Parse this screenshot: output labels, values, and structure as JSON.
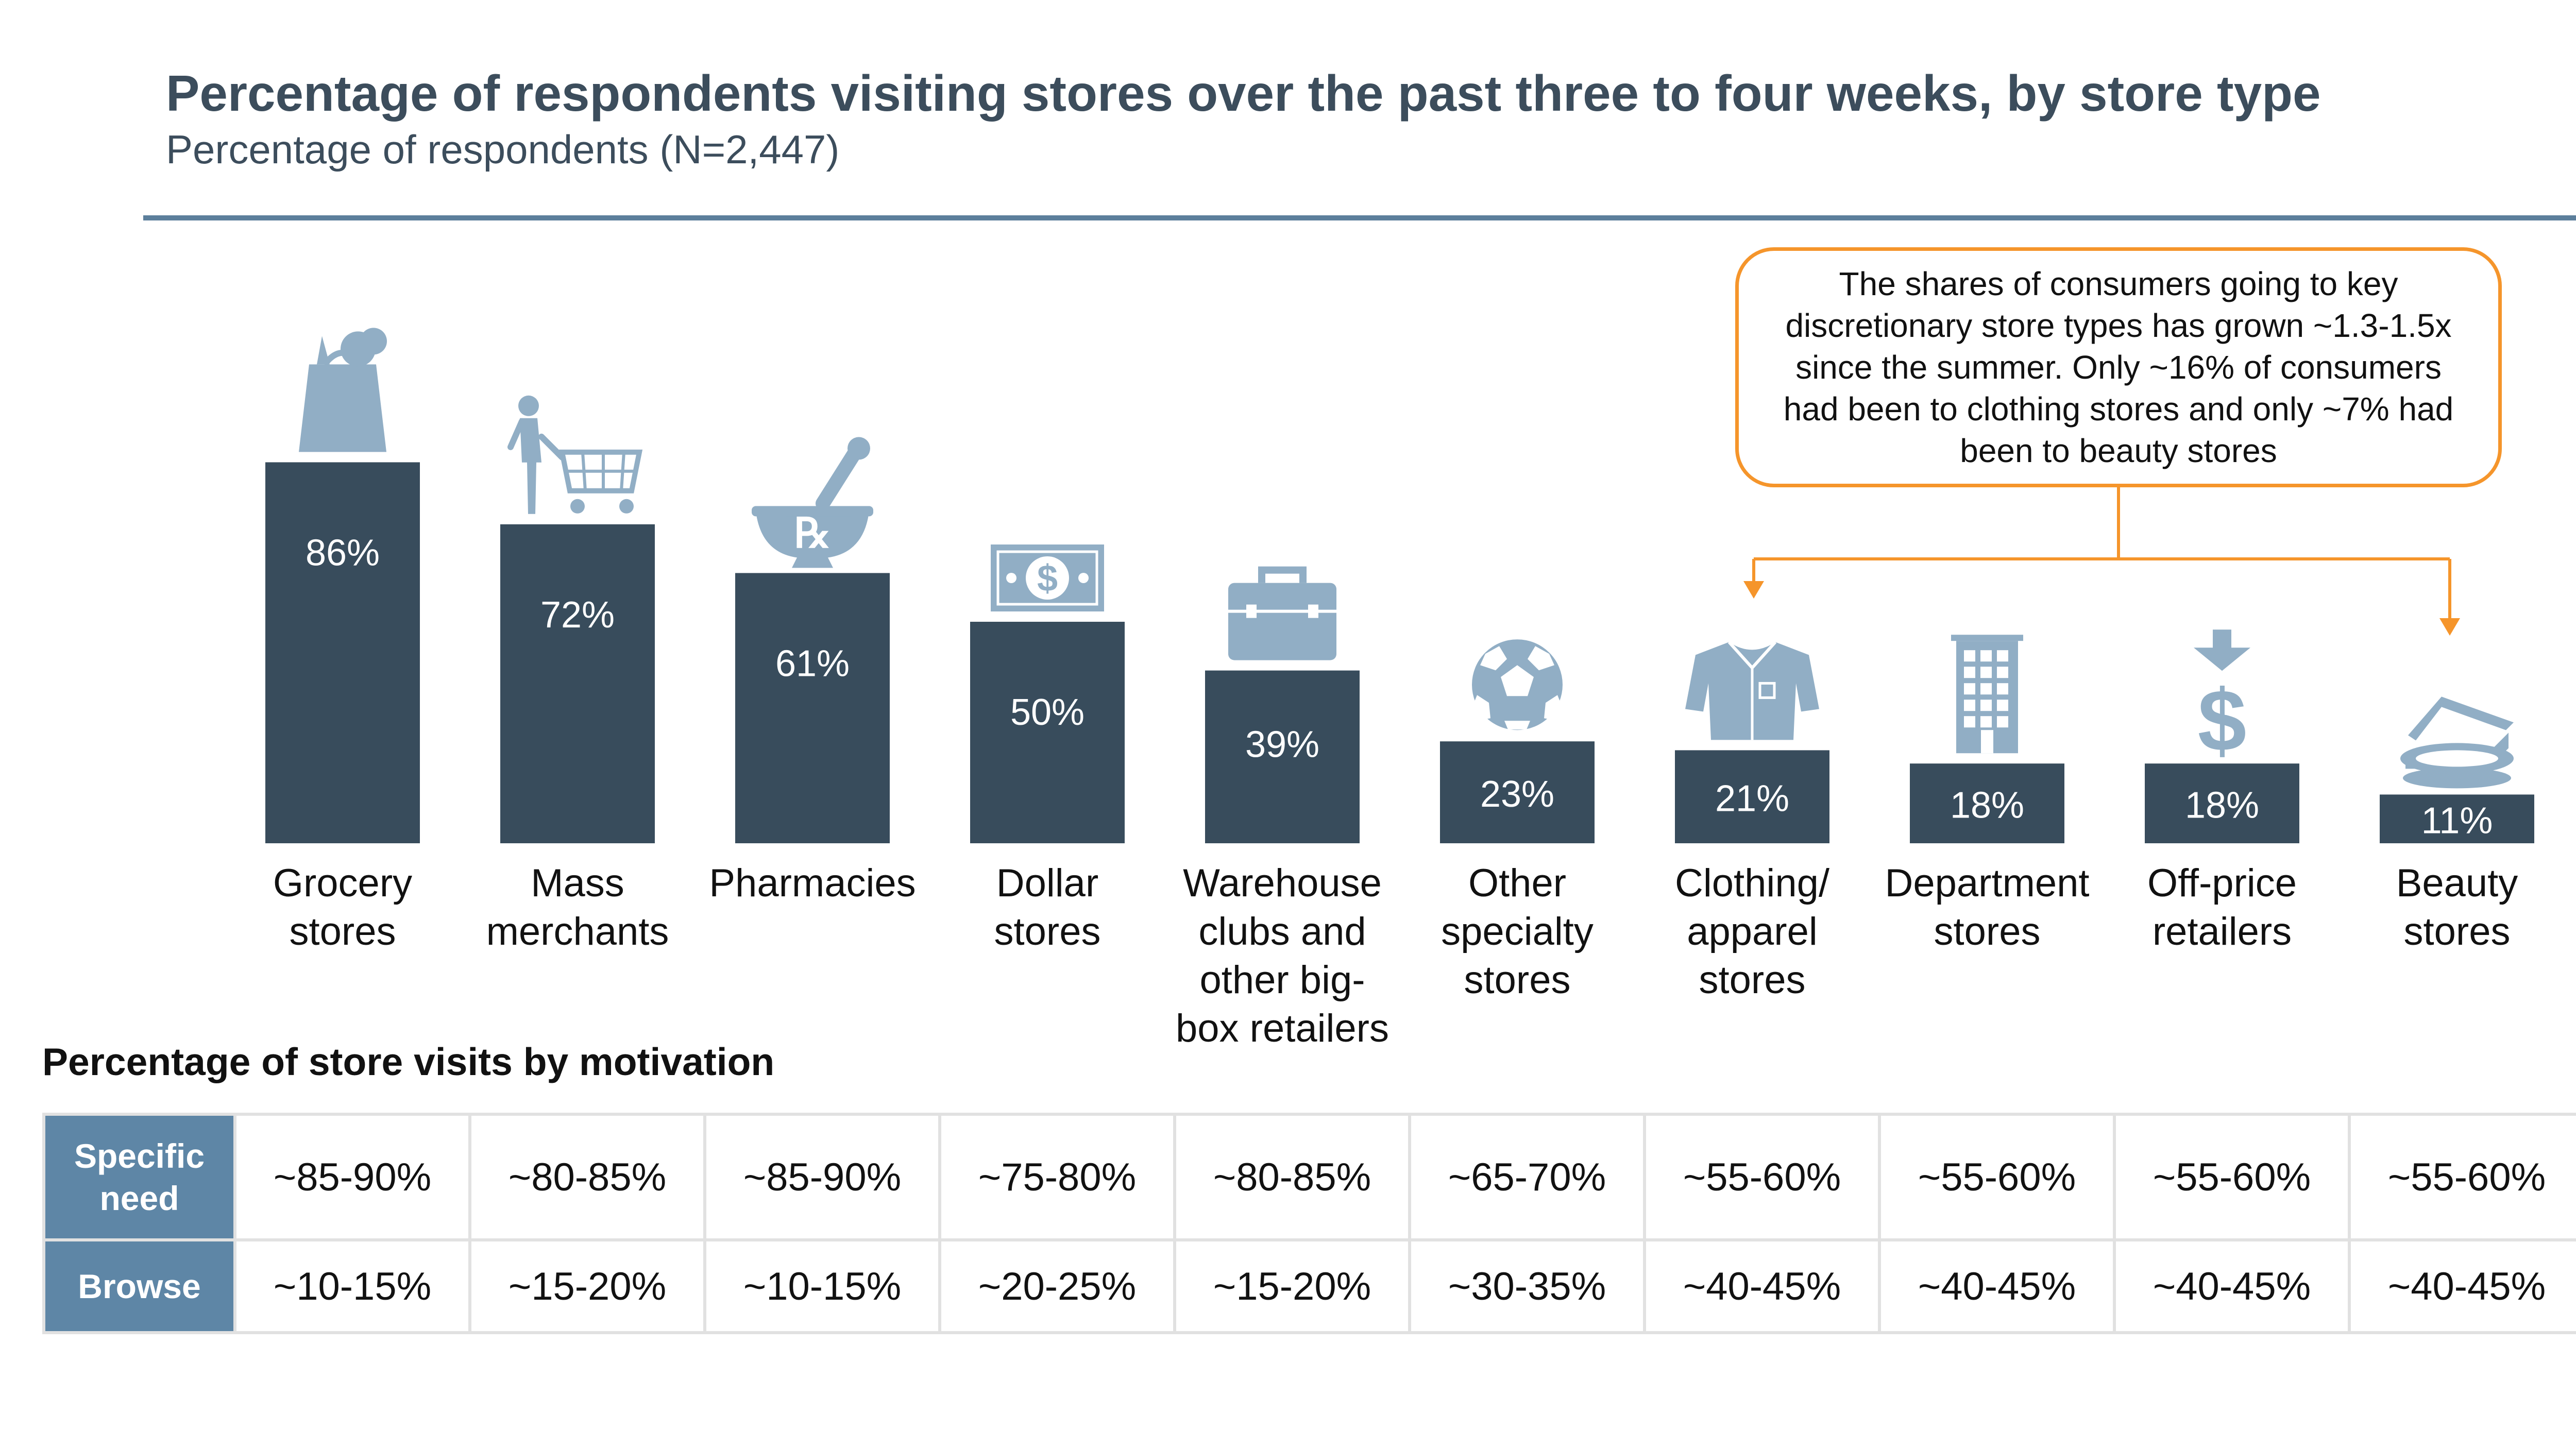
{
  "title": "Percentage of respondents visiting stores over the past three to four weeks, by store type",
  "subtitle": "Percentage of respondents (N=2,447)",
  "callout": "The shares of consumers going to key discretionary store types has grown ~1.3-1.5x since the summer. Only ~16% of consumers had been to clothing stores and only ~7% had been to beauty stores",
  "colors": {
    "bar": "#384c5c",
    "icon": "#91aec5",
    "accent": "#f5952b",
    "rule": "#5c7f9c",
    "header_cell": "#5e86a6"
  },
  "chart_data": {
    "type": "bar",
    "title": "Percentage of respondents visiting stores over the past three to four weeks, by store type",
    "ylabel": "Percentage of respondents (N=2,447)",
    "categories": [
      [
        "Grocery",
        "stores"
      ],
      [
        "Mass",
        "merchants"
      ],
      [
        "Pharmacies"
      ],
      [
        "Dollar",
        "stores"
      ],
      [
        "Warehouse",
        "clubs and",
        "other big-",
        "box retailers"
      ],
      [
        "Other",
        "specialty",
        "stores"
      ],
      [
        "Clothing/",
        "apparel",
        "stores"
      ],
      [
        "Department",
        "stores"
      ],
      [
        "Off-price",
        "retailers"
      ],
      [
        "Beauty",
        "stores"
      ]
    ],
    "values": [
      86,
      72,
      61,
      50,
      39,
      23,
      21,
      18,
      18,
      11
    ],
    "labels": [
      "86%",
      "72%",
      "61%",
      "50%",
      "39%",
      "23%",
      "21%",
      "18%",
      "18%",
      "11%"
    ],
    "icons": [
      "grocery-bag-icon",
      "shopping-cart-icon",
      "mortar-pestle-rx-icon",
      "dollar-bill-icon",
      "toolbox-icon",
      "soccer-ball-icon",
      "shirt-icon",
      "building-icon",
      "arrow-dollar-icon",
      "compact-icon"
    ],
    "ylim": [
      0,
      100
    ],
    "grid": false,
    "legend": "none"
  },
  "motivation": {
    "title": "Percentage of store visits by motivation",
    "rows": [
      {
        "label": "Specific need",
        "values": [
          "~85-90%",
          "~80-85%",
          "~85-90%",
          "~75-80%",
          "~80-85%",
          "~65-70%",
          "~55-60%",
          "~55-60%",
          "~55-60%",
          "~55-60%"
        ]
      },
      {
        "label": "Browse",
        "values": [
          "~10-15%",
          "~15-20%",
          "~10-15%",
          "~20-25%",
          "~15-20%",
          "~30-35%",
          "~40-45%",
          "~40-45%",
          "~40-45%",
          "~40-45%"
        ]
      }
    ]
  }
}
